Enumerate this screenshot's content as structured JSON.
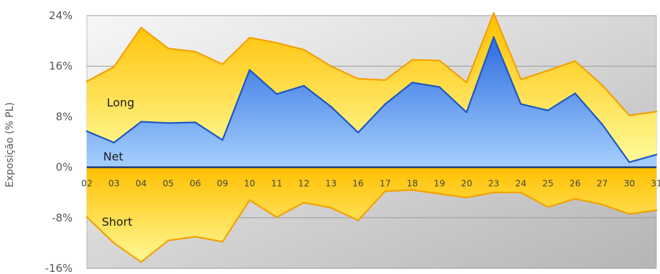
{
  "chart_data": {
    "type": "area",
    "ylabel": "Exposição (% PL)",
    "ylim": [
      -16,
      24
    ],
    "yticks": [
      "24%",
      "16%",
      "8%",
      "0%",
      "-8%",
      "-16%"
    ],
    "ytick_values": [
      24,
      16,
      8,
      0,
      -8,
      -16
    ],
    "categories": [
      "02",
      "03",
      "04",
      "05",
      "06",
      "09",
      "10",
      "11",
      "12",
      "13",
      "16",
      "17",
      "18",
      "19",
      "20",
      "23",
      "24",
      "25",
      "26",
      "27",
      "30",
      "31"
    ],
    "series": [
      {
        "name": "Long",
        "values": [
          13.6,
          15.9,
          22.1,
          18.8,
          18.3,
          16.3,
          20.5,
          19.7,
          18.6,
          16.0,
          14.0,
          13.8,
          17.0,
          16.9,
          13.4,
          24.4,
          13.9,
          15.3,
          16.8,
          13.0,
          8.2,
          8.8
        ]
      },
      {
        "name": "Net",
        "values": [
          5.7,
          3.9,
          7.2,
          7.0,
          7.1,
          4.3,
          15.4,
          11.6,
          12.9,
          9.6,
          5.5,
          10.0,
          13.4,
          12.7,
          8.7,
          20.6,
          10.0,
          9.0,
          11.7,
          6.8,
          0.8,
          2.0
        ]
      },
      {
        "name": "Short",
        "values": [
          -7.9,
          -12.0,
          -15.0,
          -11.6,
          -11.0,
          -11.8,
          -5.2,
          -7.9,
          -5.6,
          -6.4,
          -8.4,
          -3.8,
          -3.6,
          -4.2,
          -4.8,
          -4.0,
          -4.0,
          -6.3,
          -5.0,
          -5.9,
          -7.4,
          -6.8
        ]
      }
    ],
    "colors": {
      "long_fill_top": "#ffc000",
      "long_fill_bottom": "#fffda0",
      "long_line": "#f5a000",
      "net_fill_top": "#2f6fe0",
      "net_fill_bottom": "#a7d0ff",
      "net_line": "#1a56c8",
      "zero_line": "#1e3a7a",
      "plot_bg_left": "#f7f7f7",
      "plot_bg_right": "#b5b5b5"
    }
  }
}
